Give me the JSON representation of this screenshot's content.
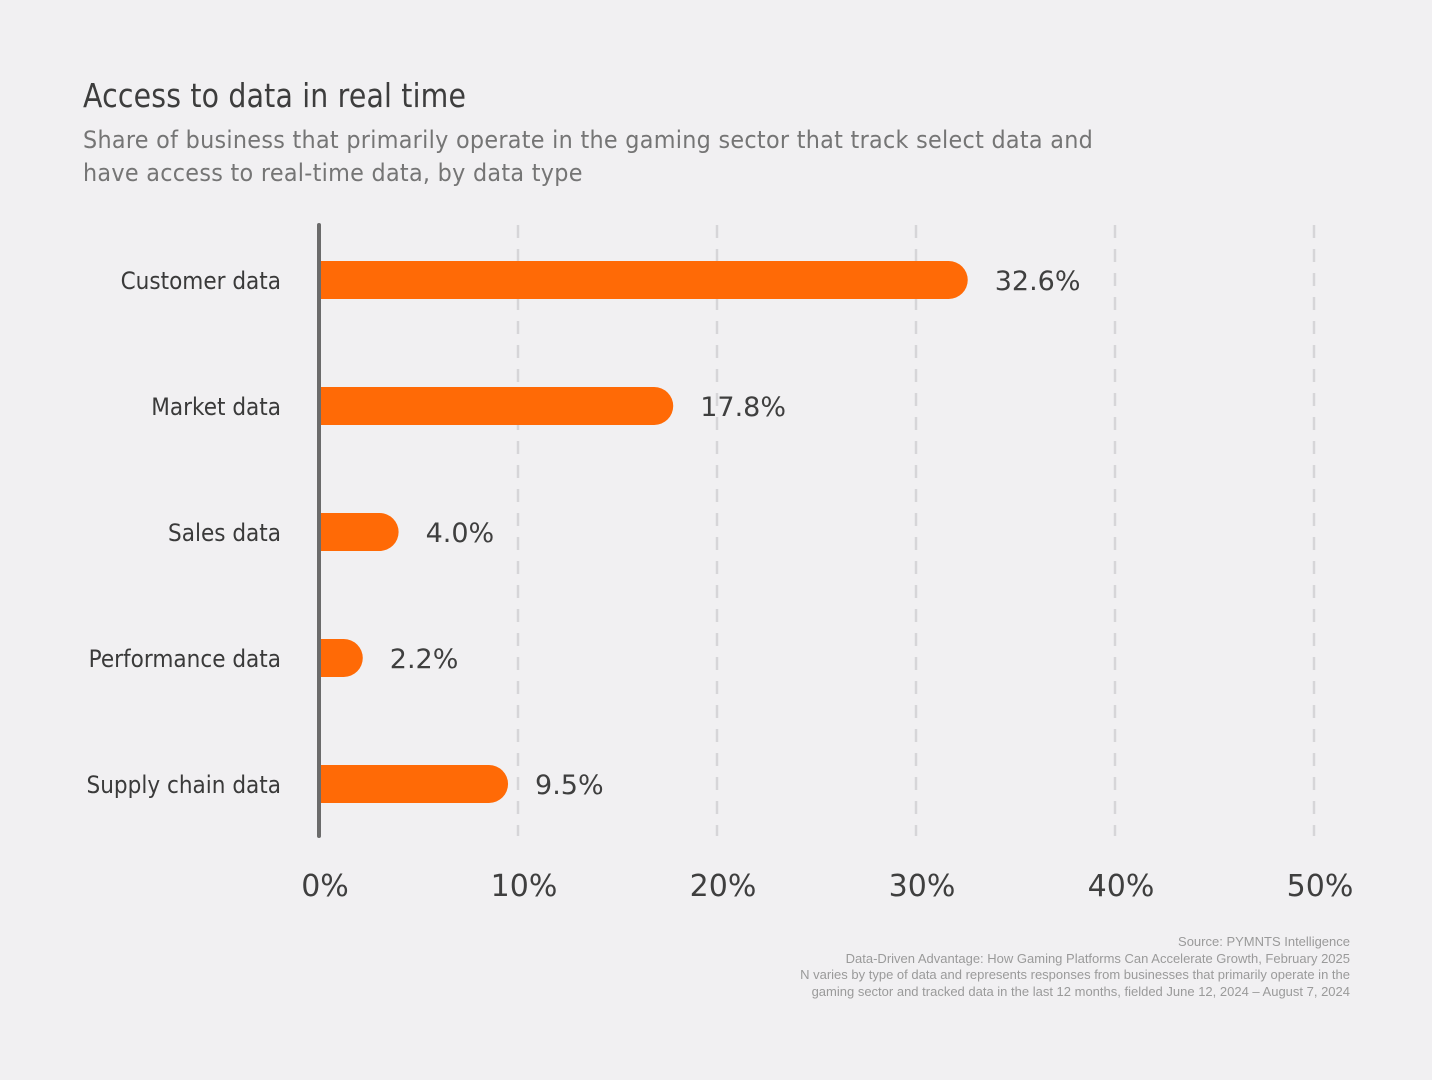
{
  "title": "Access to data in real time",
  "subtitle": "Share of business that primarily operate in the gaming sector that track select data and have access to real-time data, by data type",
  "colors": {
    "bar": "#ff6a06",
    "axis": "#6b6b6b",
    "grid": "#d6d5d8",
    "background": "#f1f0f2"
  },
  "chart_data": {
    "type": "bar",
    "orientation": "horizontal",
    "categories": [
      "Customer data",
      "Market data",
      "Sales data",
      "Performance data",
      "Supply chain data"
    ],
    "values": [
      32.6,
      17.8,
      4.0,
      2.2,
      9.5
    ],
    "data_labels": [
      "32.6%",
      "17.8%",
      "4.0%",
      "2.2%",
      "9.5%"
    ],
    "xlim": [
      0,
      50
    ],
    "x_ticks": [
      0,
      10,
      20,
      30,
      40,
      50
    ],
    "x_tick_labels": [
      "0%",
      "10%",
      "20%",
      "30%",
      "40%",
      "50%"
    ],
    "grid": "vertical dashed"
  },
  "footer": {
    "source": "Source: PYMNTS Intelligence",
    "report": "Data-Driven Advantage: How Gaming Platforms Can Accelerate Growth, February 2025",
    "note_line1": "N varies by type of data and represents responses from businesses that primarily operate in the",
    "note_line2": "gaming sector and tracked data in the last 12 months, fielded June 12, 2024 – August 7, 2024"
  }
}
